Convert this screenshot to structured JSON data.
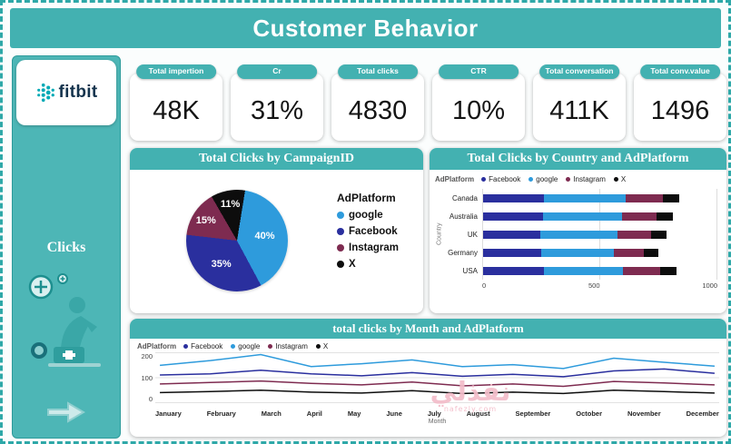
{
  "header": {
    "title": "Customer Behavior"
  },
  "sidebar": {
    "brand": "fitbit",
    "nav_label": "Clicks"
  },
  "kpis": [
    {
      "label": "Total impertion",
      "value": "48K"
    },
    {
      "label": "Cr",
      "value": "31%"
    },
    {
      "label": "Total clicks",
      "value": "4830"
    },
    {
      "label": "CTR",
      "value": "10%"
    },
    {
      "label": "Total conversation",
      "value": "411K"
    },
    {
      "label": "Total conv.value",
      "value": "1496"
    }
  ],
  "colors": {
    "teal": "#43b1b1",
    "facebook": "#2a2f9e",
    "google": "#2e9bdc",
    "instagram": "#7e2b50",
    "x": "#0d0d0d"
  },
  "watermark": {
    "text": "نفذلي",
    "sub": "nafezly.com"
  },
  "chart_data": [
    {
      "type": "pie",
      "title": "Total Clicks by CampaignID",
      "legend_title": "AdPlatform",
      "start_angle_deg": -30,
      "slices": [
        {
          "label": "X",
          "pct": 11,
          "color": "#0d0d0d"
        },
        {
          "label": "google",
          "pct": 40,
          "color": "#2e9bdc"
        },
        {
          "label": "Facebook",
          "pct": 35,
          "color": "#2a2f9e"
        },
        {
          "label": "Instagram",
          "pct": 15,
          "color": "#7e2b50"
        }
      ],
      "legend_order": [
        "google",
        "Facebook",
        "Instagram",
        "X"
      ]
    },
    {
      "type": "bar",
      "title": "Total Clicks by Country and AdPlatform",
      "legend_title": "AdPlatform",
      "stacked": true,
      "orientation": "horizontal",
      "categories": [
        "Canada",
        "Australia",
        "UK",
        "Germany",
        "USA"
      ],
      "series": [
        {
          "name": "Facebook",
          "color": "#2a2f9e",
          "values": [
            260,
            255,
            245,
            250,
            260
          ]
        },
        {
          "name": "google",
          "color": "#2e9bdc",
          "values": [
            350,
            340,
            330,
            310,
            340
          ]
        },
        {
          "name": "Instagram",
          "color": "#7e2b50",
          "values": [
            160,
            150,
            145,
            130,
            160
          ]
        },
        {
          "name": "X",
          "color": "#0d0d0d",
          "values": [
            70,
            70,
            65,
            60,
            70
          ]
        }
      ],
      "xlim": [
        0,
        1000
      ],
      "xticks": [
        0,
        500,
        1000
      ],
      "ylabel": "Country"
    },
    {
      "type": "line",
      "title": "total clicks by Month and AdPlatform",
      "legend_title": "AdPlatform",
      "categories": [
        "January",
        "February",
        "March",
        "April",
        "May",
        "June",
        "July",
        "August",
        "September",
        "October",
        "November",
        "December"
      ],
      "series": [
        {
          "name": "Facebook",
          "color": "#2a2f9e",
          "values": [
            115,
            120,
            135,
            120,
            112,
            125,
            110,
            118,
            108,
            132,
            140,
            122
          ]
        },
        {
          "name": "google",
          "color": "#2e9bdc",
          "values": [
            155,
            175,
            200,
            150,
            162,
            178,
            150,
            158,
            142,
            185,
            168,
            152
          ]
        },
        {
          "name": "Instagram",
          "color": "#7e2b50",
          "values": [
            78,
            84,
            90,
            80,
            74,
            86,
            70,
            78,
            68,
            88,
            82,
            74
          ]
        },
        {
          "name": "X",
          "color": "#0d0d0d",
          "values": [
            42,
            46,
            52,
            44,
            40,
            50,
            38,
            44,
            38,
            52,
            46,
            40
          ]
        }
      ],
      "ylim": [
        0,
        200
      ],
      "yticks": [
        0,
        100,
        200
      ],
      "xlabel": "Month"
    }
  ]
}
